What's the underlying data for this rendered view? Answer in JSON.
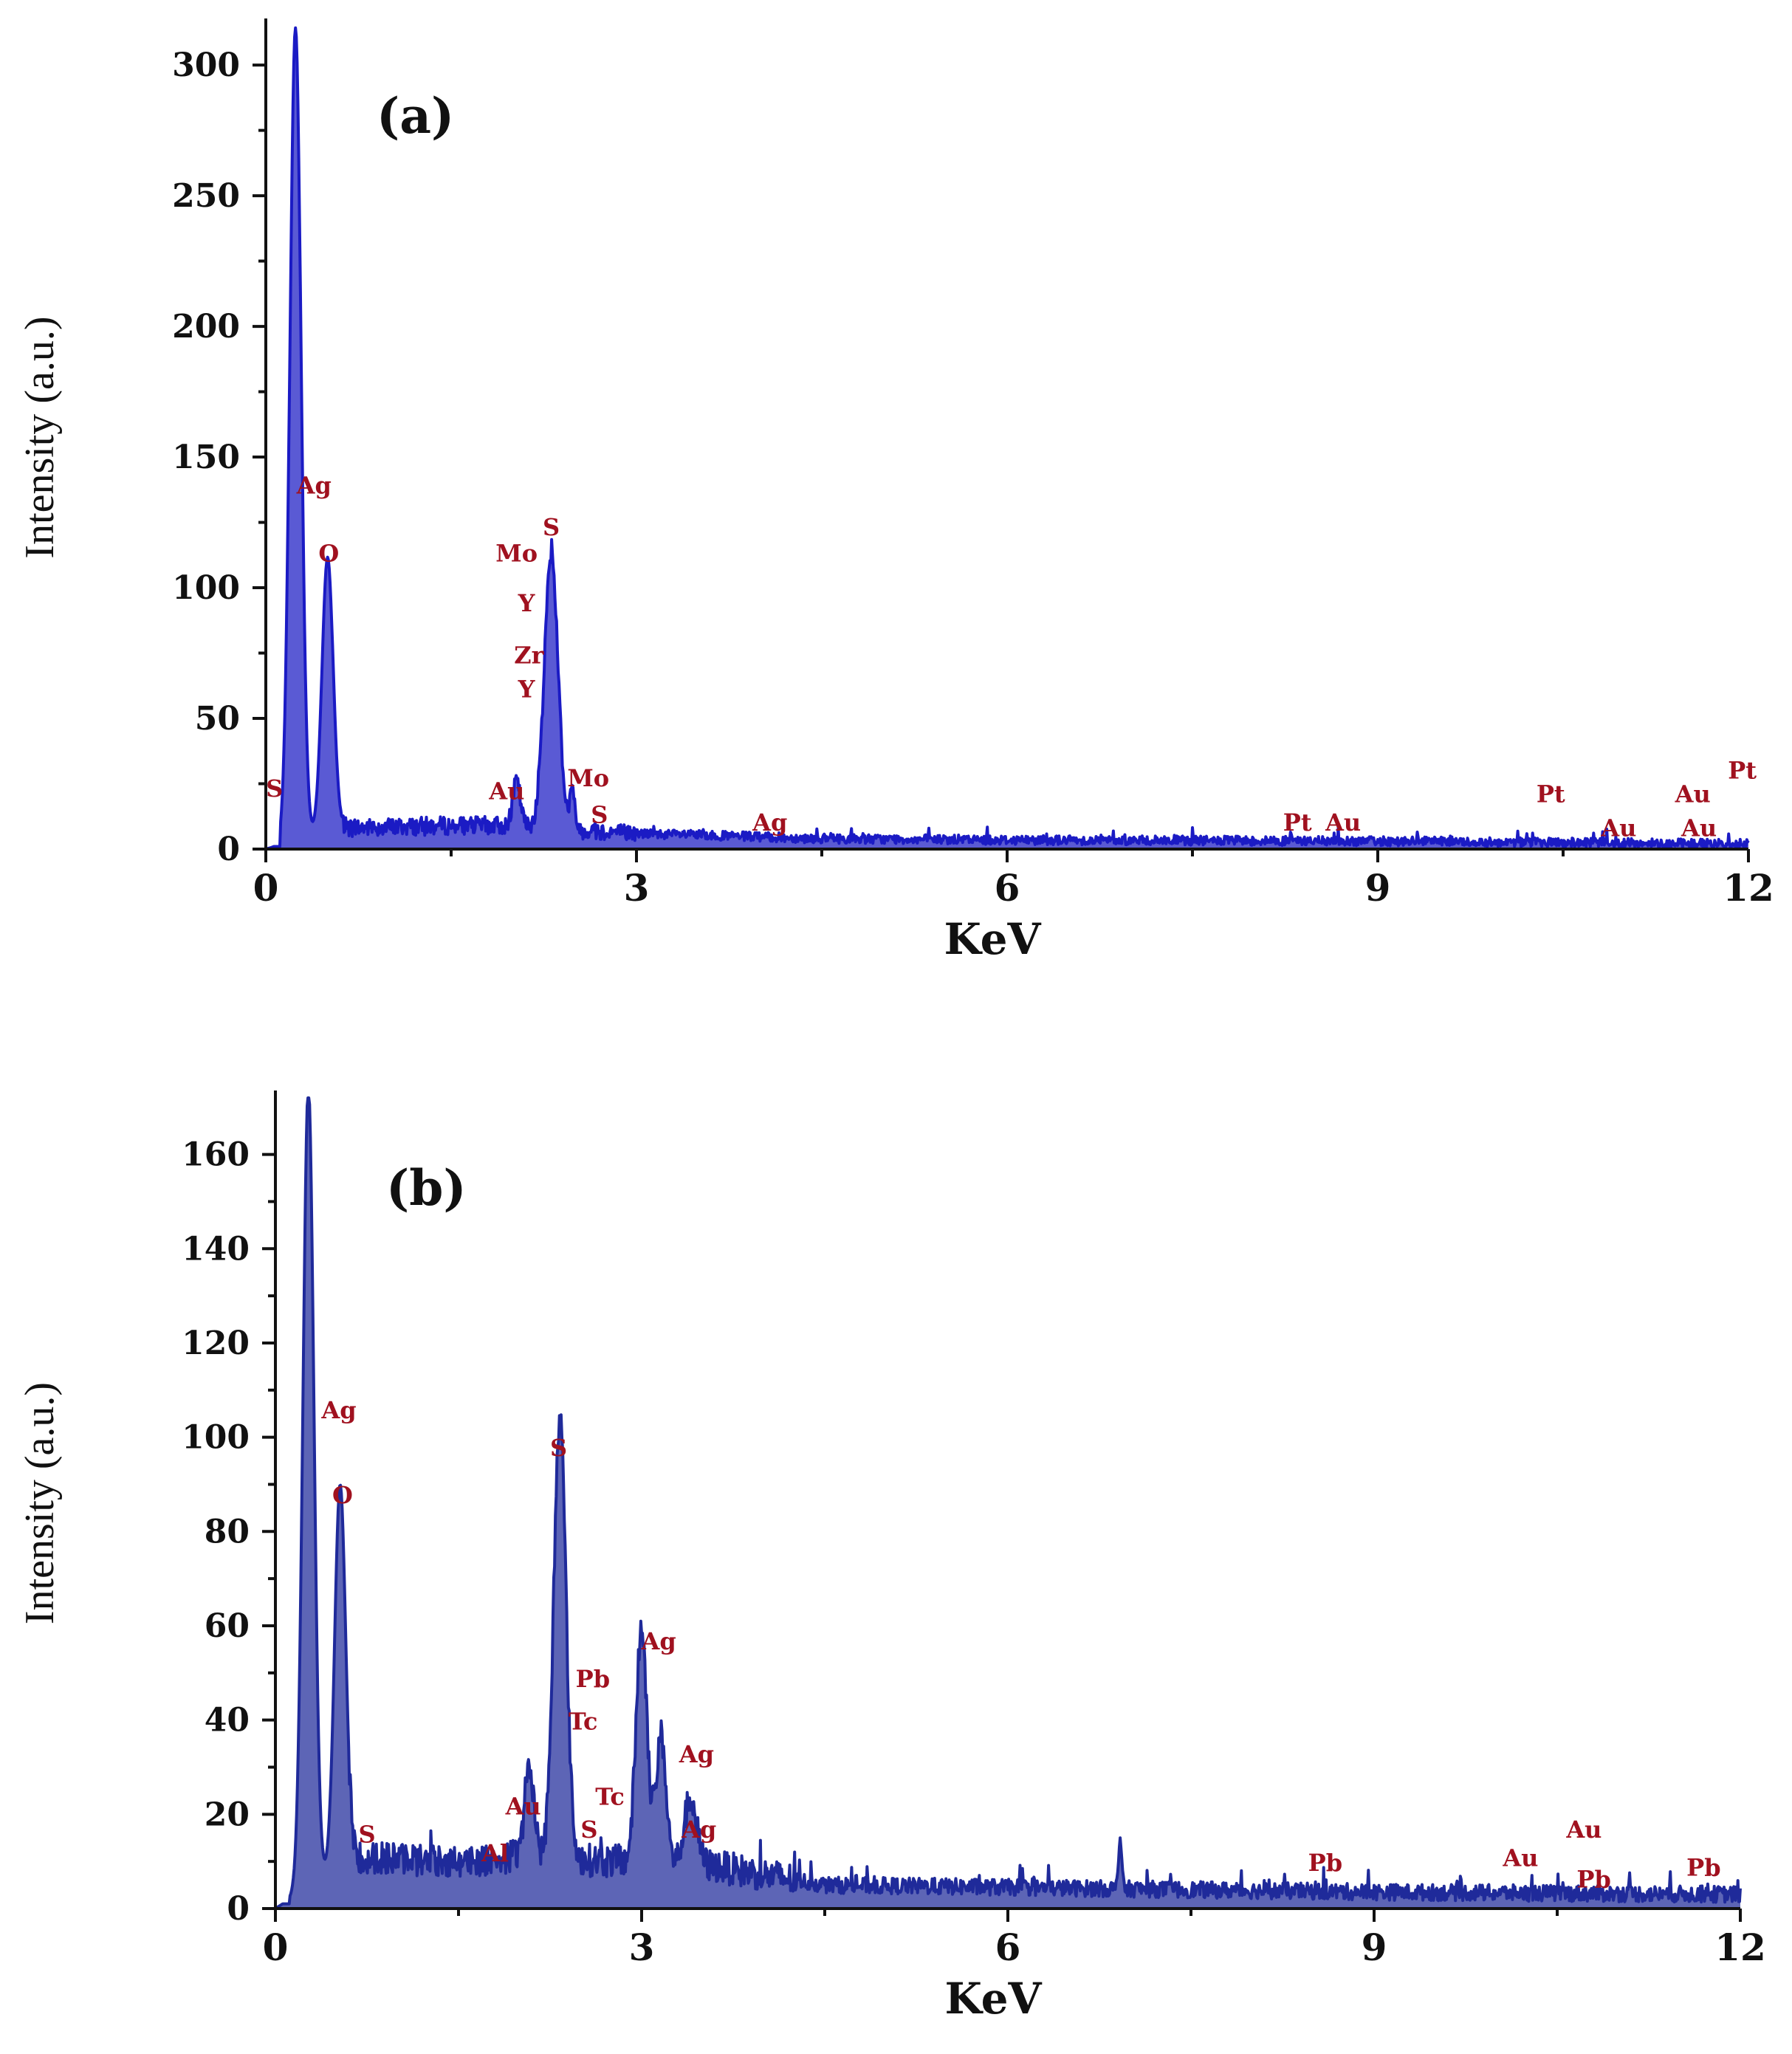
{
  "chart_data": [
    {
      "type": "area",
      "panel": "(a)",
      "xlabel": "KeV",
      "ylabel": "Intensity (a.u.)",
      "xlim": [
        0,
        12
      ],
      "ylim": [
        0,
        315
      ],
      "xticks": [
        "0",
        "3",
        "6",
        "9",
        "12"
      ],
      "yticks": [
        "0",
        "50",
        "100",
        "150",
        "200",
        "250",
        "300"
      ],
      "ytick_values": [
        0,
        50,
        100,
        150,
        200,
        250,
        300
      ],
      "color": "#1b1bc4",
      "peaks": [
        {
          "x": 0.24,
          "y": 311,
          "w": 0.045
        },
        {
          "x": 0.5,
          "y": 105,
          "w": 0.045
        },
        {
          "x": 2.03,
          "y": 17,
          "w": 0.03
        },
        {
          "x": 2.31,
          "y": 105,
          "w": 0.055
        },
        {
          "x": 2.48,
          "y": 14,
          "w": 0.02
        }
      ],
      "baseline": [
        [
          0,
          0
        ],
        [
          0.6,
          8
        ],
        [
          1.5,
          9
        ],
        [
          2.0,
          9
        ],
        [
          3.0,
          6
        ],
        [
          4.5,
          4
        ],
        [
          6.0,
          3.5
        ],
        [
          9.0,
          3
        ],
        [
          12,
          2
        ]
      ],
      "labels": [
        {
          "text": "S",
          "x": 0.07,
          "y": 20
        },
        {
          "text": "Ag",
          "x": 0.39,
          "y": 136
        },
        {
          "text": "O",
          "x": 0.51,
          "y": 110
        },
        {
          "text": "Mo",
          "x": 2.03,
          "y": 110
        },
        {
          "text": "S",
          "x": 2.31,
          "y": 120
        },
        {
          "text": "Y",
          "x": 2.11,
          "y": 91
        },
        {
          "text": "Zr",
          "x": 2.13,
          "y": 71
        },
        {
          "text": "Y",
          "x": 2.11,
          "y": 58
        },
        {
          "text": "Au",
          "x": 1.95,
          "y": 19
        },
        {
          "text": "Mo",
          "x": 2.61,
          "y": 24
        },
        {
          "text": "S",
          "x": 2.7,
          "y": 10
        },
        {
          "text": "Ag",
          "x": 4.08,
          "y": 7
        },
        {
          "text": "Pt",
          "x": 8.35,
          "y": 7
        },
        {
          "text": "Au",
          "x": 8.72,
          "y": 7
        },
        {
          "text": "Pt",
          "x": 10.4,
          "y": 18
        },
        {
          "text": "Au",
          "x": 10.95,
          "y": 5
        },
        {
          "text": "Au",
          "x": 11.55,
          "y": 18
        },
        {
          "text": "Au",
          "x": 11.6,
          "y": 5
        },
        {
          "text": "Pt",
          "x": 11.95,
          "y": 27
        }
      ]
    },
    {
      "type": "area",
      "panel": "(b)",
      "xlabel": "KeV",
      "ylabel": "Intensity (a.u.)",
      "xlim": [
        0,
        12
      ],
      "ylim": [
        0,
        172
      ],
      "xticks": [
        "0",
        "3",
        "6",
        "9",
        "12"
      ],
      "yticks": [
        "0",
        "20",
        "40",
        "60",
        "80",
        "100",
        "120",
        "140",
        "160"
      ],
      "ytick_values": [
        0,
        20,
        40,
        60,
        80,
        100,
        120,
        140,
        160
      ],
      "color": "#1f2a9a",
      "peaks": [
        {
          "x": 0.27,
          "y": 170,
          "w": 0.045
        },
        {
          "x": 0.53,
          "y": 81,
          "w": 0.045
        },
        {
          "x": 2.08,
          "y": 18,
          "w": 0.04
        },
        {
          "x": 2.33,
          "y": 94,
          "w": 0.05
        },
        {
          "x": 3.0,
          "y": 50,
          "w": 0.045
        },
        {
          "x": 3.16,
          "y": 27,
          "w": 0.04
        },
        {
          "x": 3.4,
          "y": 14,
          "w": 0.05
        },
        {
          "x": 6.92,
          "y": 11,
          "w": 0.012
        }
      ],
      "baseline": [
        [
          0,
          0
        ],
        [
          0.65,
          11
        ],
        [
          1.5,
          10
        ],
        [
          2.0,
          11
        ],
        [
          3.6,
          9
        ],
        [
          4.5,
          5
        ],
        [
          6.0,
          4.5
        ],
        [
          9.0,
          3.5
        ],
        [
          12,
          3
        ]
      ],
      "labels": [
        {
          "text": "Ag",
          "x": 0.52,
          "y": 104
        },
        {
          "text": "O",
          "x": 0.55,
          "y": 86
        },
        {
          "text": "S",
          "x": 0.75,
          "y": 14
        },
        {
          "text": "Al",
          "x": 1.8,
          "y": 10
        },
        {
          "text": "Au",
          "x": 2.03,
          "y": 20
        },
        {
          "text": "S",
          "x": 2.32,
          "y": 96
        },
        {
          "text": "Pb",
          "x": 2.6,
          "y": 47
        },
        {
          "text": "Tc",
          "x": 2.52,
          "y": 38
        },
        {
          "text": "Tc",
          "x": 2.74,
          "y": 22
        },
        {
          "text": "S",
          "x": 2.57,
          "y": 15
        },
        {
          "text": "Ag",
          "x": 3.14,
          "y": 55
        },
        {
          "text": "Ag",
          "x": 3.45,
          "y": 31
        },
        {
          "text": "Ag",
          "x": 3.47,
          "y": 15
        },
        {
          "text": "Pb",
          "x": 8.6,
          "y": 8
        },
        {
          "text": "Au",
          "x": 10.2,
          "y": 9
        },
        {
          "text": "Au",
          "x": 10.72,
          "y": 15
        },
        {
          "text": "Pb",
          "x": 10.8,
          "y": 4.5
        },
        {
          "text": "Pb",
          "x": 11.7,
          "y": 7
        }
      ]
    }
  ]
}
